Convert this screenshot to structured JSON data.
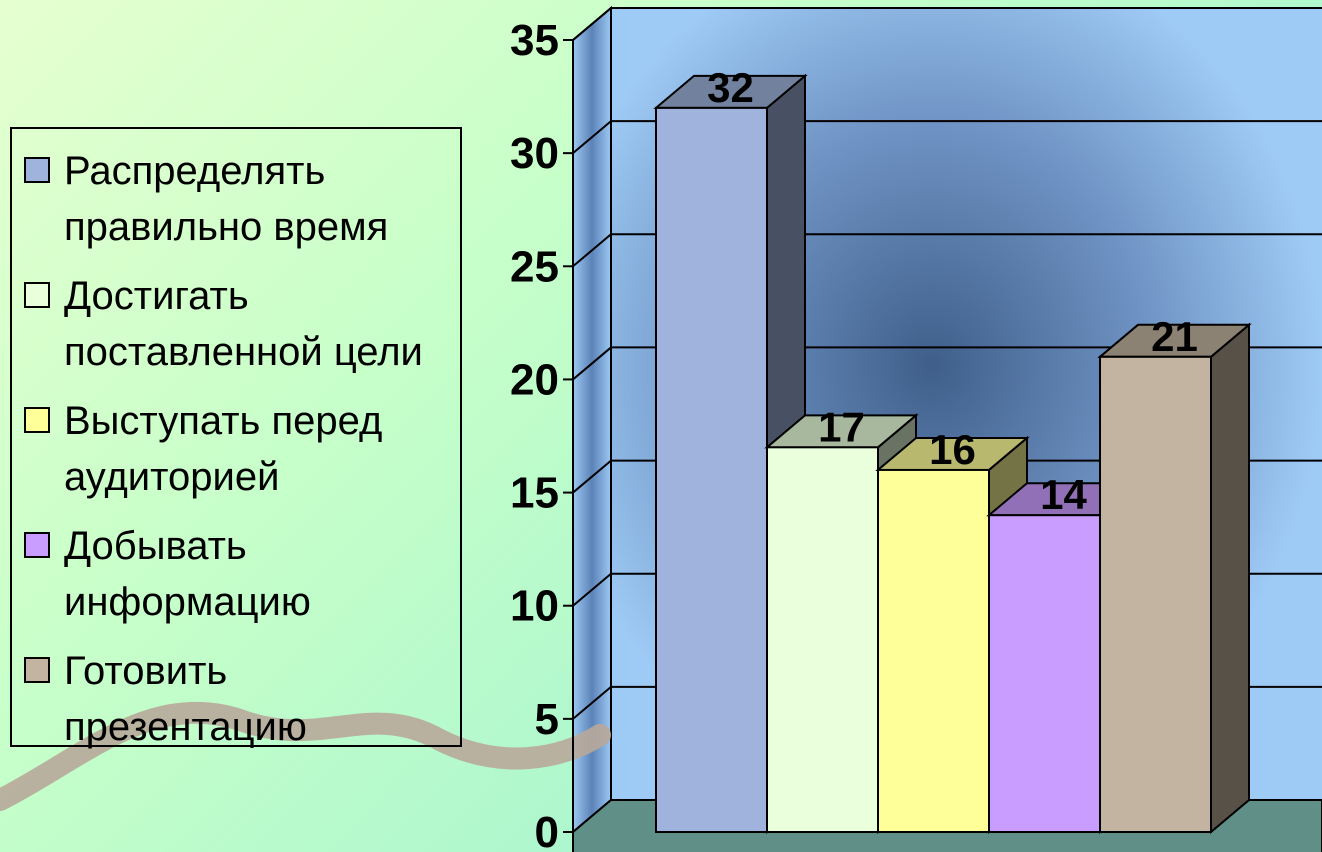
{
  "chart_data": {
    "type": "bar",
    "categories": [
      "Распределять правильно время",
      "Достигать поставленной цели",
      "Выступать перед аудиторией",
      "Добывать информацию",
      "Готовить презентацию"
    ],
    "values": [
      32,
      17,
      16,
      14,
      21
    ],
    "data_labels": [
      "32",
      "17",
      "16",
      "14",
      "21"
    ],
    "colors": [
      "#9fb3dc",
      "#eaffdc",
      "#ffff99",
      "#c99cff",
      "#c2b4a0"
    ],
    "ylim": [
      0,
      35
    ],
    "yticks": [
      "0",
      "5",
      "10",
      "15",
      "20",
      "25",
      "30",
      "35"
    ],
    "grid": true,
    "legend_position": "left",
    "legend": [
      {
        "line1": "Распределять",
        "line2": "правильно время"
      },
      {
        "line1": "Достигать",
        "line2": "поставленной цели"
      },
      {
        "line1": "Выступать перед",
        "line2": "аудиторией"
      },
      {
        "line1": "Добывать",
        "line2": "информацию"
      },
      {
        "line1": "Готовить",
        "line2": "презентацию"
      }
    ]
  }
}
